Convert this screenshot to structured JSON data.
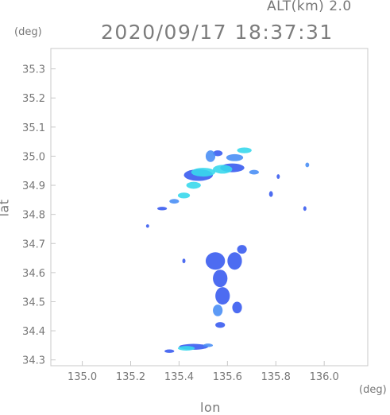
{
  "header": {
    "altitude": "ALT(km) 2.0",
    "datetime": "2020/09/17 18:37:31"
  },
  "axes": {
    "y_unit": "(deg)",
    "x_unit": "(deg)",
    "xlabel": "lon",
    "ylabel": "lat"
  },
  "colors": {
    "frame": "#c8c8c8",
    "tick_text": "#777777",
    "echo_low": "#3a5cf0",
    "echo_mid": "#4a8ff5",
    "echo_high": "#38d8ec"
  },
  "chart_data": {
    "type": "heatmap",
    "title": "2020/09/17 18:37:31",
    "subtitle": "ALT(km) 2.0",
    "xlabel": "lon",
    "ylabel": "lat",
    "xlim": [
      134.87,
      136.18
    ],
    "ylim": [
      34.28,
      35.37
    ],
    "xticks": [
      "135.0",
      "135.2",
      "135.4",
      "135.6",
      "135.8",
      "136.0"
    ],
    "yticks": [
      "34.3",
      "34.4",
      "34.5",
      "34.6",
      "34.7",
      "34.8",
      "34.9",
      "35.0",
      "35.1",
      "35.2",
      "35.3"
    ],
    "grid": false,
    "echoes": [
      {
        "lon": 135.5,
        "lat": 34.945,
        "rx": 0.05,
        "ry": 0.015,
        "level": "high"
      },
      {
        "lon": 135.58,
        "lat": 34.955,
        "rx": 0.04,
        "ry": 0.015,
        "level": "high"
      },
      {
        "lon": 135.67,
        "lat": 35.02,
        "rx": 0.03,
        "ry": 0.01,
        "level": "high"
      },
      {
        "lon": 135.63,
        "lat": 34.995,
        "rx": 0.035,
        "ry": 0.012,
        "level": "mid"
      },
      {
        "lon": 135.53,
        "lat": 35.0,
        "rx": 0.02,
        "ry": 0.02,
        "level": "mid"
      },
      {
        "lon": 135.46,
        "lat": 34.9,
        "rx": 0.03,
        "ry": 0.012,
        "level": "high"
      },
      {
        "lon": 135.42,
        "lat": 34.865,
        "rx": 0.025,
        "ry": 0.01,
        "level": "high"
      },
      {
        "lon": 135.38,
        "lat": 34.845,
        "rx": 0.02,
        "ry": 0.008,
        "level": "mid"
      },
      {
        "lon": 135.33,
        "lat": 34.82,
        "rx": 0.02,
        "ry": 0.006,
        "level": "low"
      },
      {
        "lon": 135.48,
        "lat": 34.935,
        "rx": 0.06,
        "ry": 0.02,
        "level": "low"
      },
      {
        "lon": 135.62,
        "lat": 34.96,
        "rx": 0.05,
        "ry": 0.015,
        "level": "low"
      },
      {
        "lon": 135.71,
        "lat": 34.945,
        "rx": 0.02,
        "ry": 0.008,
        "level": "mid"
      },
      {
        "lon": 135.56,
        "lat": 35.01,
        "rx": 0.02,
        "ry": 0.01,
        "level": "low"
      },
      {
        "lon": 135.93,
        "lat": 34.97,
        "rx": 0.008,
        "ry": 0.008,
        "level": "mid"
      },
      {
        "lon": 135.78,
        "lat": 34.87,
        "rx": 0.008,
        "ry": 0.01,
        "level": "low"
      },
      {
        "lon": 135.81,
        "lat": 34.93,
        "rx": 0.005,
        "ry": 0.008,
        "level": "low"
      },
      {
        "lon": 135.27,
        "lat": 34.76,
        "rx": 0.006,
        "ry": 0.006,
        "level": "low"
      },
      {
        "lon": 135.92,
        "lat": 34.82,
        "rx": 0.005,
        "ry": 0.008,
        "level": "low"
      },
      {
        "lon": 135.42,
        "lat": 34.64,
        "rx": 0.006,
        "ry": 0.008,
        "level": "low"
      },
      {
        "lon": 135.55,
        "lat": 34.64,
        "rx": 0.04,
        "ry": 0.03,
        "level": "low"
      },
      {
        "lon": 135.63,
        "lat": 34.64,
        "rx": 0.03,
        "ry": 0.03,
        "level": "low"
      },
      {
        "lon": 135.57,
        "lat": 34.58,
        "rx": 0.03,
        "ry": 0.03,
        "level": "low"
      },
      {
        "lon": 135.58,
        "lat": 34.52,
        "rx": 0.03,
        "ry": 0.03,
        "level": "low"
      },
      {
        "lon": 135.56,
        "lat": 34.47,
        "rx": 0.02,
        "ry": 0.02,
        "level": "mid"
      },
      {
        "lon": 135.64,
        "lat": 34.48,
        "rx": 0.02,
        "ry": 0.02,
        "level": "low"
      },
      {
        "lon": 135.66,
        "lat": 34.68,
        "rx": 0.02,
        "ry": 0.015,
        "level": "low"
      },
      {
        "lon": 135.57,
        "lat": 34.42,
        "rx": 0.02,
        "ry": 0.01,
        "level": "low"
      },
      {
        "lon": 135.46,
        "lat": 34.345,
        "rx": 0.06,
        "ry": 0.01,
        "level": "low"
      },
      {
        "lon": 135.43,
        "lat": 34.34,
        "rx": 0.035,
        "ry": 0.008,
        "level": "high"
      },
      {
        "lon": 135.36,
        "lat": 34.33,
        "rx": 0.02,
        "ry": 0.006,
        "level": "low"
      },
      {
        "lon": 135.52,
        "lat": 34.35,
        "rx": 0.02,
        "ry": 0.006,
        "level": "mid"
      }
    ]
  }
}
